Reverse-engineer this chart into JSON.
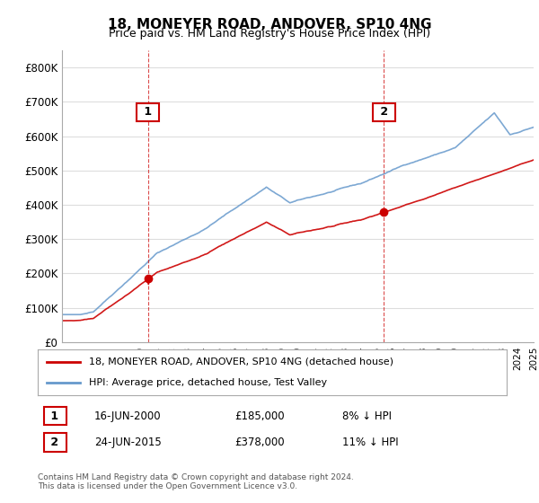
{
  "title": "18, MONEYER ROAD, ANDOVER, SP10 4NG",
  "subtitle": "Price paid vs. HM Land Registry's House Price Index (HPI)",
  "ylabel": "",
  "ylim": [
    0,
    850000
  ],
  "yticks": [
    0,
    100000,
    200000,
    300000,
    400000,
    500000,
    600000,
    700000,
    800000
  ],
  "ytick_labels": [
    "£0",
    "£100K",
    "£200K",
    "£300K",
    "£400K",
    "£500K",
    "£600K",
    "£700K",
    "£800K"
  ],
  "x_start_year": 1995,
  "x_end_year": 2025,
  "sale1_date": 2000.46,
  "sale1_price": 185000,
  "sale2_date": 2015.48,
  "sale2_price": 378000,
  "legend_line1": "18, MONEYER ROAD, ANDOVER, SP10 4NG (detached house)",
  "legend_line2": "HPI: Average price, detached house, Test Valley",
  "annotation1_label": "1",
  "annotation1_text": "16-JUN-2000",
  "annotation1_price": "£185,000",
  "annotation1_hpi": "8% ↓ HPI",
  "annotation2_label": "2",
  "annotation2_text": "24-JUN-2015",
  "annotation2_price": "£378,000",
  "annotation2_hpi": "11% ↓ HPI",
  "footer": "Contains HM Land Registry data © Crown copyright and database right 2024.\nThis data is licensed under the Open Government Licence v3.0.",
  "line_color_red": "#cc0000",
  "line_color_blue": "#6699cc",
  "grid_color": "#dddddd",
  "background_color": "#ffffff"
}
